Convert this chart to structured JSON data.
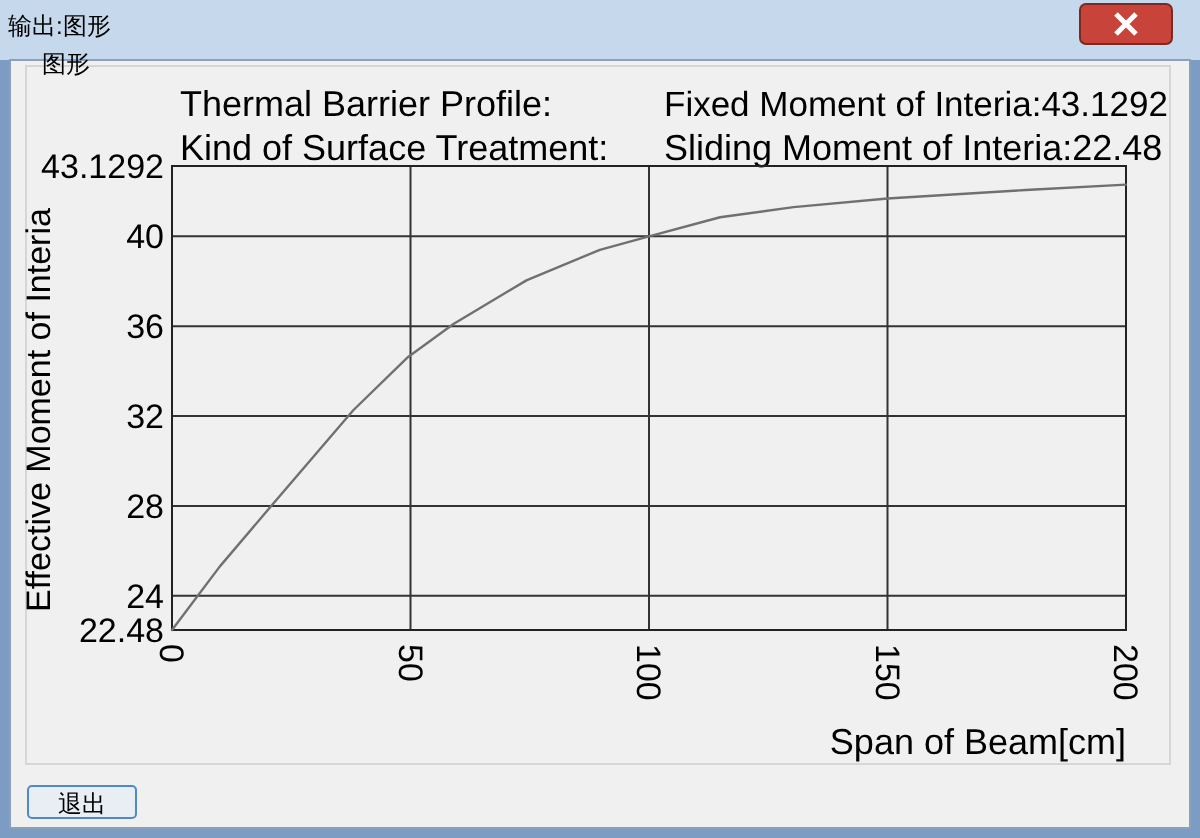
{
  "chart_data": {
    "type": "line",
    "xlabel": "Span of Beam[cm]",
    "ylabel": "Effective Moment of Interia",
    "x": [
      0,
      10,
      21.2,
      38,
      49.5,
      59,
      74.3,
      89.7,
      100,
      114.9,
      130.3,
      150,
      179,
      200
    ],
    "values": [
      22.48,
      25.3,
      28.1,
      32.26,
      34.63,
      36.1,
      38.04,
      39.4,
      40.0,
      40.85,
      41.3,
      41.68,
      42.06,
      42.3
    ],
    "color": "#707070",
    "xlim": [
      0,
      200
    ],
    "xticks": [
      0,
      50,
      100,
      150,
      200
    ],
    "ylim": [
      22.48,
      43.1292
    ],
    "yticks": [
      22.48,
      24,
      28,
      32,
      36,
      40,
      43.1292
    ],
    "grid": true,
    "annotations": [
      "输出:图形",
      "图形",
      "Thermal Barrier Profile:",
      "Fixed Moment of Interia:43.1292",
      "Kind of Surface Treatment:",
      "Sliding Moment of Interia:22.48",
      "退出"
    ]
  }
}
